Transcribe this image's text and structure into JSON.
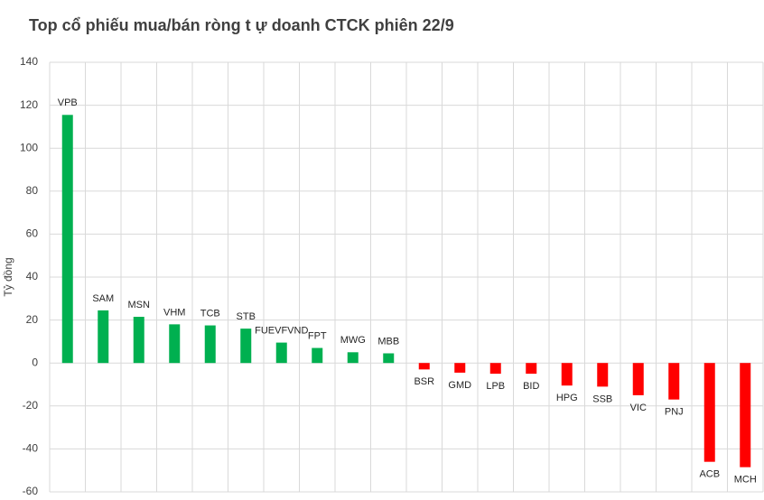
{
  "chart_data": {
    "type": "bar",
    "title": "Top cổ phiếu mua/bán ròng t ự doanh CTCK phiên 22/9",
    "y_label": "Tỷ đồng",
    "categories": [
      "VPB",
      "SAM",
      "MSN",
      "VHM",
      "TCB",
      "STB",
      "FUEVFVND",
      "FPT",
      "MWG",
      "MBB",
      "BSR",
      "GMD",
      "LPB",
      "BID",
      "HPG",
      "SSB",
      "VIC",
      "PNJ",
      "ACB",
      "MCH"
    ],
    "values": [
      115.5,
      24.5,
      21.5,
      18,
      17.5,
      16,
      9.5,
      7,
      5,
      4.5,
      -3,
      -4.5,
      -5,
      -5,
      -10.5,
      -11,
      -15,
      -17,
      -46,
      -48.5
    ],
    "color": "#00b050",
    "negative_color": "#ff0000",
    "ylim": [
      -60,
      140
    ],
    "yticks": [
      -60,
      -40,
      -20,
      0,
      20,
      40,
      60,
      80,
      100,
      120,
      140
    ],
    "grid": true
  }
}
